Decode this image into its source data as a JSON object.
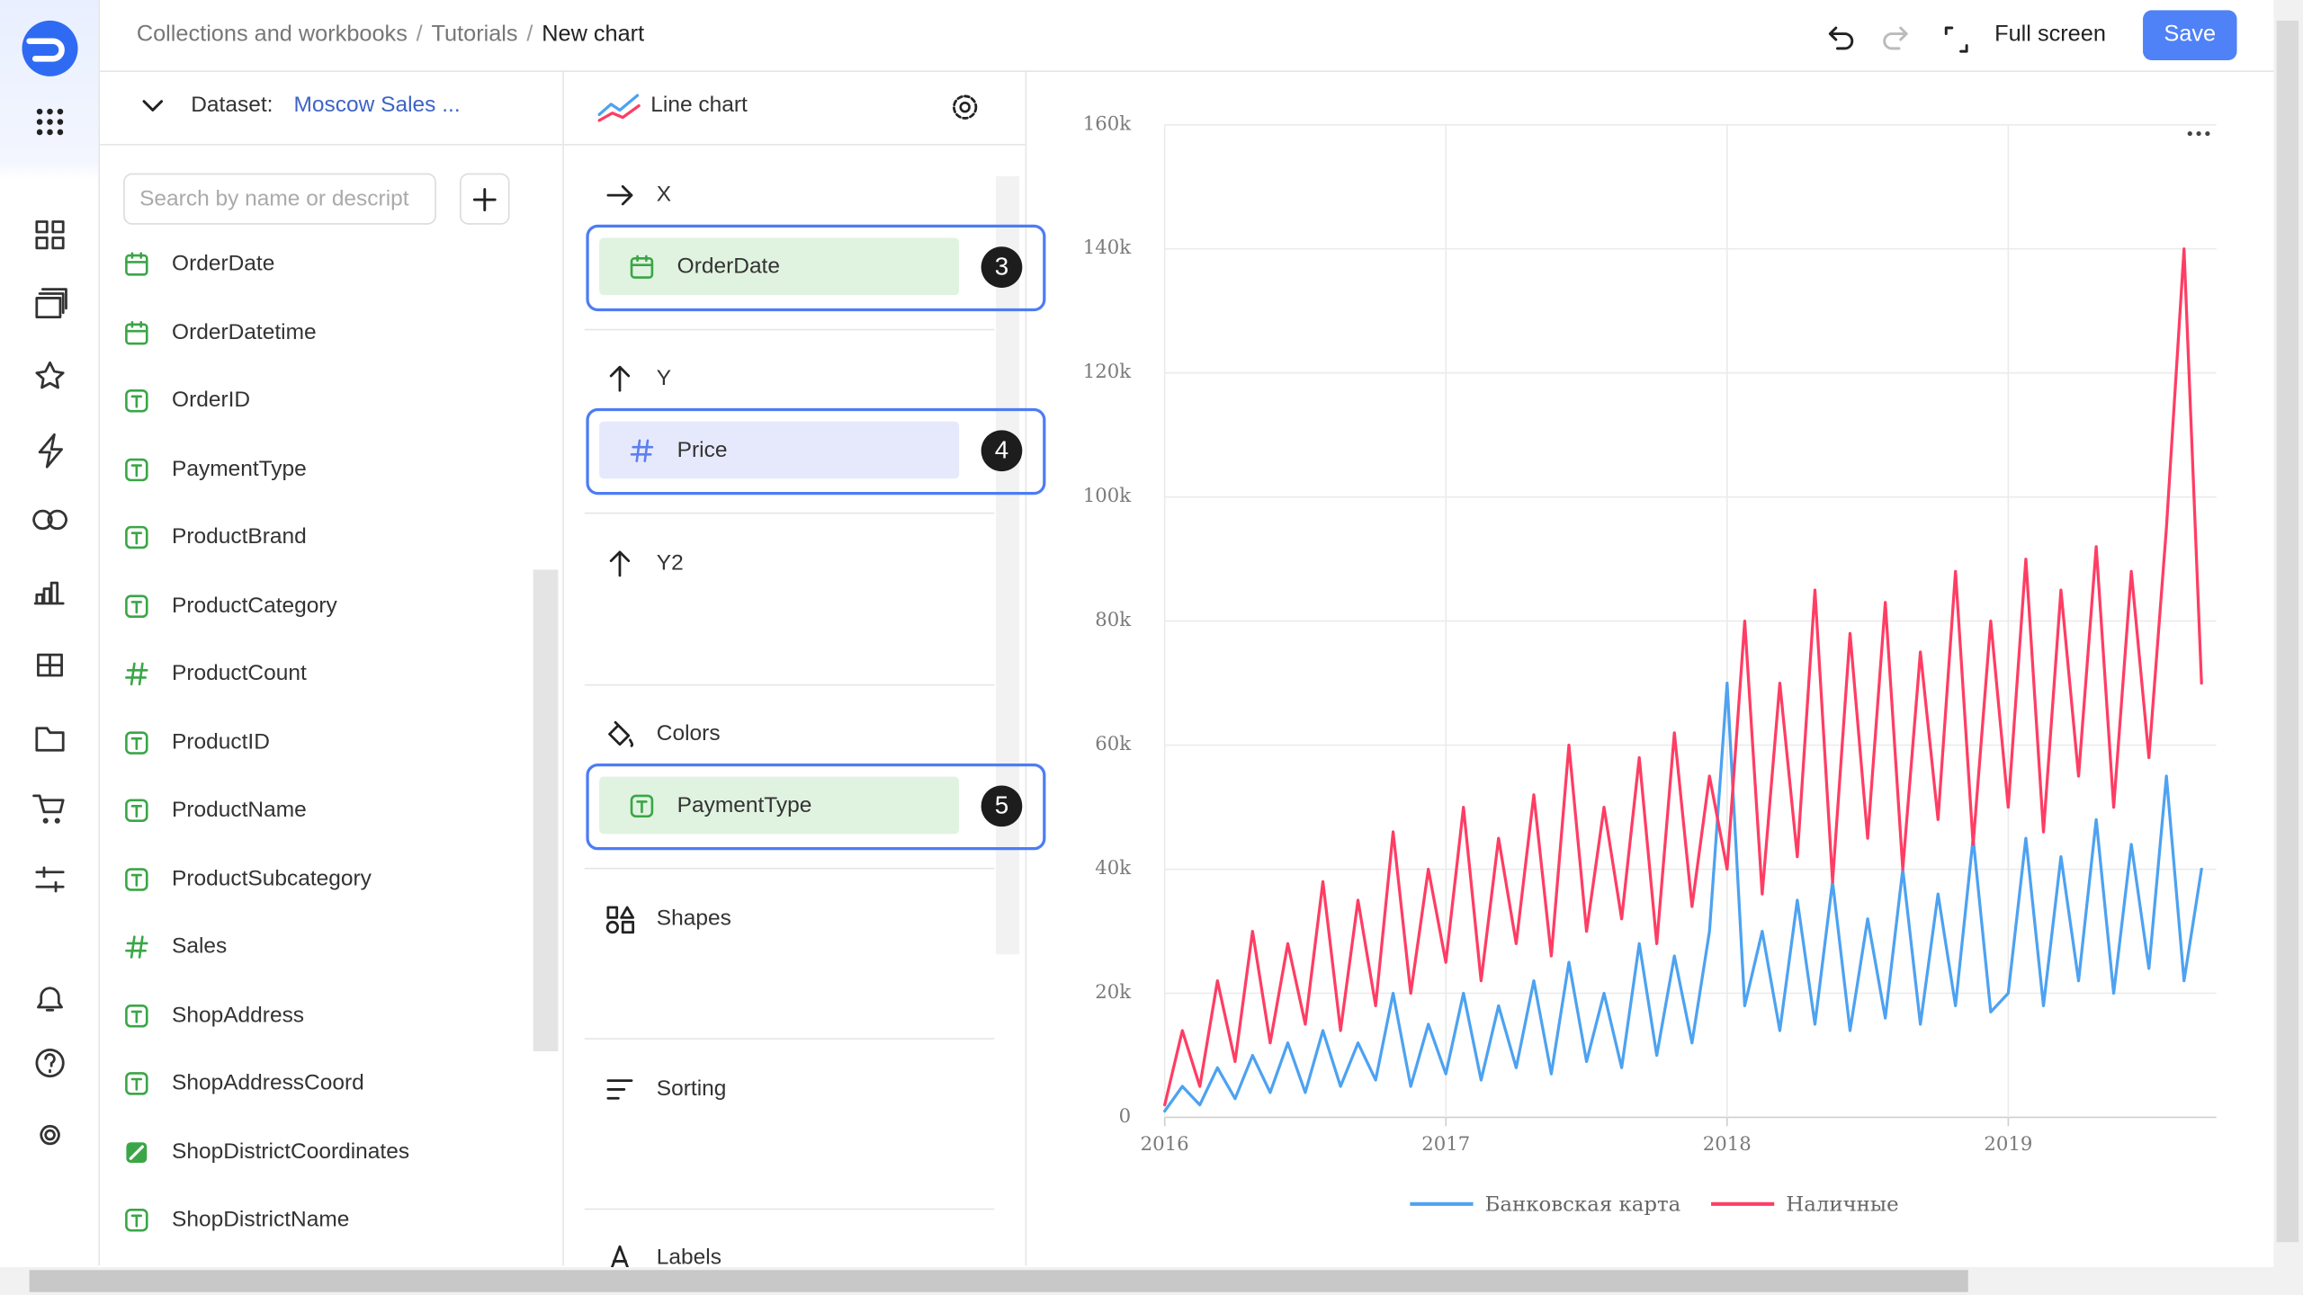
{
  "header": {
    "breadcrumbs": [
      "Collections and workbooks",
      "Tutorials",
      "New chart"
    ],
    "separator": "/",
    "full_screen": "Full screen",
    "save": "Save"
  },
  "dataset": {
    "label": "Dataset:",
    "name": "Moscow Sales ...",
    "search_placeholder": "Search by name or descript",
    "fields": [
      {
        "icon": "date",
        "name": "OrderDate"
      },
      {
        "icon": "date",
        "name": "OrderDatetime"
      },
      {
        "icon": "text",
        "name": "OrderID"
      },
      {
        "icon": "text",
        "name": "PaymentType"
      },
      {
        "icon": "text",
        "name": "ProductBrand"
      },
      {
        "icon": "text",
        "name": "ProductCategory"
      },
      {
        "icon": "number",
        "name": "ProductCount"
      },
      {
        "icon": "text",
        "name": "ProductID"
      },
      {
        "icon": "text",
        "name": "ProductName"
      },
      {
        "icon": "text",
        "name": "ProductSubcategory"
      },
      {
        "icon": "number",
        "name": "Sales"
      },
      {
        "icon": "text",
        "name": "ShopAddress"
      },
      {
        "icon": "text",
        "name": "ShopAddressCoord"
      },
      {
        "icon": "geo",
        "name": "ShopDistrictCoordinates"
      },
      {
        "icon": "text",
        "name": "ShopDistrictName"
      }
    ]
  },
  "wizard": {
    "chart_type": "Line chart",
    "sections": [
      {
        "title": "X",
        "icon": "arrow-right",
        "item": {
          "name": "OrderDate",
          "icon": "date",
          "badge": 3
        }
      },
      {
        "title": "Y",
        "icon": "arrow-up",
        "item": {
          "name": "Price",
          "icon": "number",
          "badge": 4
        }
      },
      {
        "title": "Y2",
        "icon": "arrow-up"
      },
      {
        "title": "Colors",
        "icon": "colors",
        "item": {
          "name": "PaymentType",
          "icon": "text",
          "badge": 5
        }
      },
      {
        "title": "Shapes",
        "icon": "shapes"
      },
      {
        "title": "Sorting",
        "icon": "sorting"
      },
      {
        "title": "Labels",
        "icon": "labels"
      }
    ]
  },
  "chart_data": {
    "type": "line",
    "grid": true,
    "x": [
      2016,
      2016.0625,
      2016.125,
      2016.1875,
      2016.25,
      2016.3125,
      2016.375,
      2016.4375,
      2016.5,
      2016.5625,
      2016.625,
      2016.6875,
      2016.75,
      2016.8125,
      2016.875,
      2016.9375,
      2017,
      2017.0625,
      2017.125,
      2017.1875,
      2017.25,
      2017.3125,
      2017.375,
      2017.4375,
      2017.5,
      2017.5625,
      2017.625,
      2017.6875,
      2017.75,
      2017.8125,
      2017.875,
      2017.9375,
      2018,
      2018.0625,
      2018.125,
      2018.1875,
      2018.25,
      2018.3125,
      2018.375,
      2018.4375,
      2018.5,
      2018.5625,
      2018.625,
      2018.6875,
      2018.75,
      2018.8125,
      2018.875,
      2018.9375,
      2019,
      2019.0625,
      2019.125,
      2019.1875,
      2019.25,
      2019.3125,
      2019.375,
      2019.4375,
      2019.5,
      2019.5625,
      2019.625,
      2019.6875
    ],
    "series": [
      {
        "name": "Банковская карта",
        "color": "#4da2f1",
        "values": [
          1000,
          5000,
          2000,
          8000,
          3000,
          10000,
          4000,
          12000,
          4000,
          14000,
          5000,
          12000,
          6000,
          20000,
          5000,
          15000,
          7000,
          20000,
          6000,
          18000,
          8000,
          22000,
          7000,
          25000,
          9000,
          20000,
          8000,
          28000,
          10000,
          26000,
          12000,
          30000,
          70000,
          18000,
          30000,
          14000,
          35000,
          15000,
          38000,
          14000,
          32000,
          16000,
          40000,
          15000,
          36000,
          18000,
          45000,
          17000,
          20000,
          45000,
          18000,
          42000,
          22000,
          48000,
          20000,
          44000,
          24000,
          55000,
          22000,
          40000
        ]
      },
      {
        "name": "Наличные",
        "color": "#ff3d64",
        "values": [
          2000,
          14000,
          5000,
          22000,
          9000,
          30000,
          12000,
          28000,
          15000,
          38000,
          14000,
          35000,
          18000,
          46000,
          20000,
          40000,
          25000,
          50000,
          22000,
          45000,
          28000,
          52000,
          26000,
          60000,
          30000,
          50000,
          32000,
          58000,
          28000,
          62000,
          34000,
          55000,
          40000,
          80000,
          36000,
          70000,
          42000,
          85000,
          38000,
          78000,
          45000,
          83000,
          40000,
          75000,
          48000,
          88000,
          44000,
          80000,
          50000,
          90000,
          46000,
          85000,
          55000,
          92000,
          50000,
          88000,
          58000,
          95000,
          140000,
          70000
        ]
      }
    ],
    "xlim": [
      2016,
      2019.74
    ],
    "xticks": [
      2016,
      2017,
      2018,
      2019
    ],
    "ylim": [
      0,
      160000
    ],
    "yticks": [
      0,
      {
        "value": 20000,
        "label": "20k"
      },
      {
        "value": 40000,
        "label": "40k"
      },
      {
        "value": 60000,
        "label": "60k"
      },
      {
        "value": 80000,
        "label": "80k"
      },
      {
        "value": 100000,
        "label": "100k"
      },
      {
        "value": 120000,
        "label": "120k"
      },
      {
        "value": 140000,
        "label": "140k"
      },
      {
        "value": 160000,
        "label": "160k"
      }
    ]
  }
}
